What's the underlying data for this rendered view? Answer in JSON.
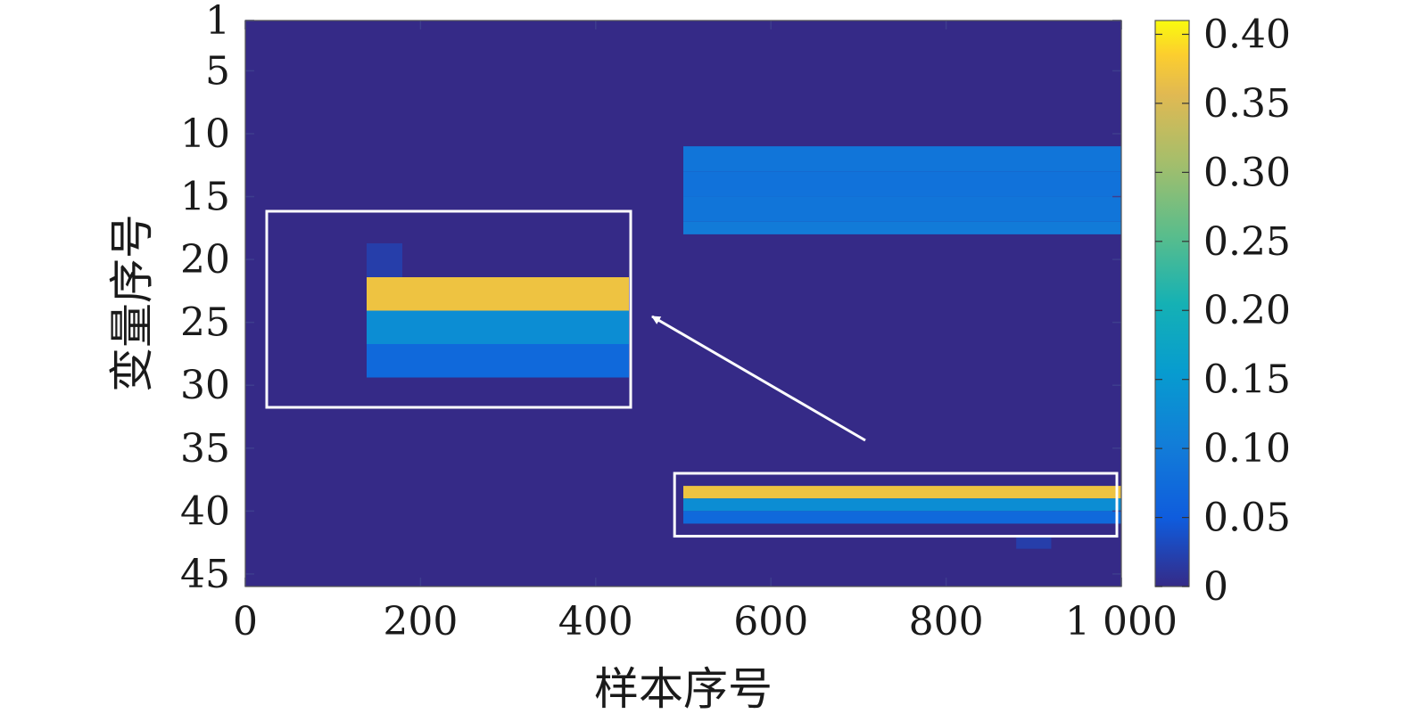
{
  "chart_data": {
    "type": "heatmap",
    "title": "",
    "xlabel": "样本序号",
    "ylabel": "变量序号",
    "xlim": [
      0,
      1000
    ],
    "ylim": [
      1,
      46
    ],
    "x_ticks": [
      0,
      200,
      400,
      600,
      800,
      1000
    ],
    "x_tick_labels": [
      "0",
      "200",
      "400",
      "600",
      "800",
      "1 000"
    ],
    "y_ticks": [
      1,
      5,
      10,
      15,
      20,
      25,
      30,
      35,
      40,
      45
    ],
    "y_tick_labels": [
      "1",
      "5",
      "10",
      "15",
      "20",
      "25",
      "30",
      "35",
      "40",
      "45"
    ],
    "colorbar": {
      "range": [
        0,
        0.41
      ],
      "ticks": [
        0,
        0.05,
        0.1,
        0.15,
        0.2,
        0.25,
        0.3,
        0.35,
        0.4
      ],
      "tick_labels": [
        "0",
        "0.05",
        "0.10",
        "0.15",
        "0.20",
        "0.25",
        "0.30",
        "0.35",
        "0.40"
      ],
      "colormap": "parula"
    },
    "background_value": 0,
    "regions": [
      {
        "x": [
          500,
          1000
        ],
        "y": [
          11,
          13
        ],
        "value": 0.09
      },
      {
        "x": [
          500,
          1000
        ],
        "y": [
          13,
          15
        ],
        "value": 0.085
      },
      {
        "x": [
          500,
          1000
        ],
        "y": [
          15,
          17
        ],
        "value": 0.09
      },
      {
        "x": [
          500,
          1000
        ],
        "y": [
          17,
          18
        ],
        "value": 0.1
      },
      {
        "x": [
          500,
          1000
        ],
        "y": [
          38,
          39
        ],
        "value": 0.37
      },
      {
        "x": [
          500,
          1000
        ],
        "y": [
          39,
          40
        ],
        "value": 0.13
      },
      {
        "x": [
          500,
          1000
        ],
        "y": [
          40,
          41
        ],
        "value": 0.07
      },
      {
        "x": [
          880,
          920
        ],
        "y": [
          42,
          43
        ],
        "value": 0.02
      }
    ],
    "zoom_inset": {
      "source_region": {
        "x": [
          490,
          1000
        ],
        "y": [
          37,
          42
        ]
      },
      "rows": [
        {
          "y": [
            38,
            39
          ],
          "value": 0.37
        },
        {
          "y": [
            39,
            40
          ],
          "value": 0.13
        },
        {
          "y": [
            40,
            41
          ],
          "value": 0.07
        }
      ]
    }
  }
}
